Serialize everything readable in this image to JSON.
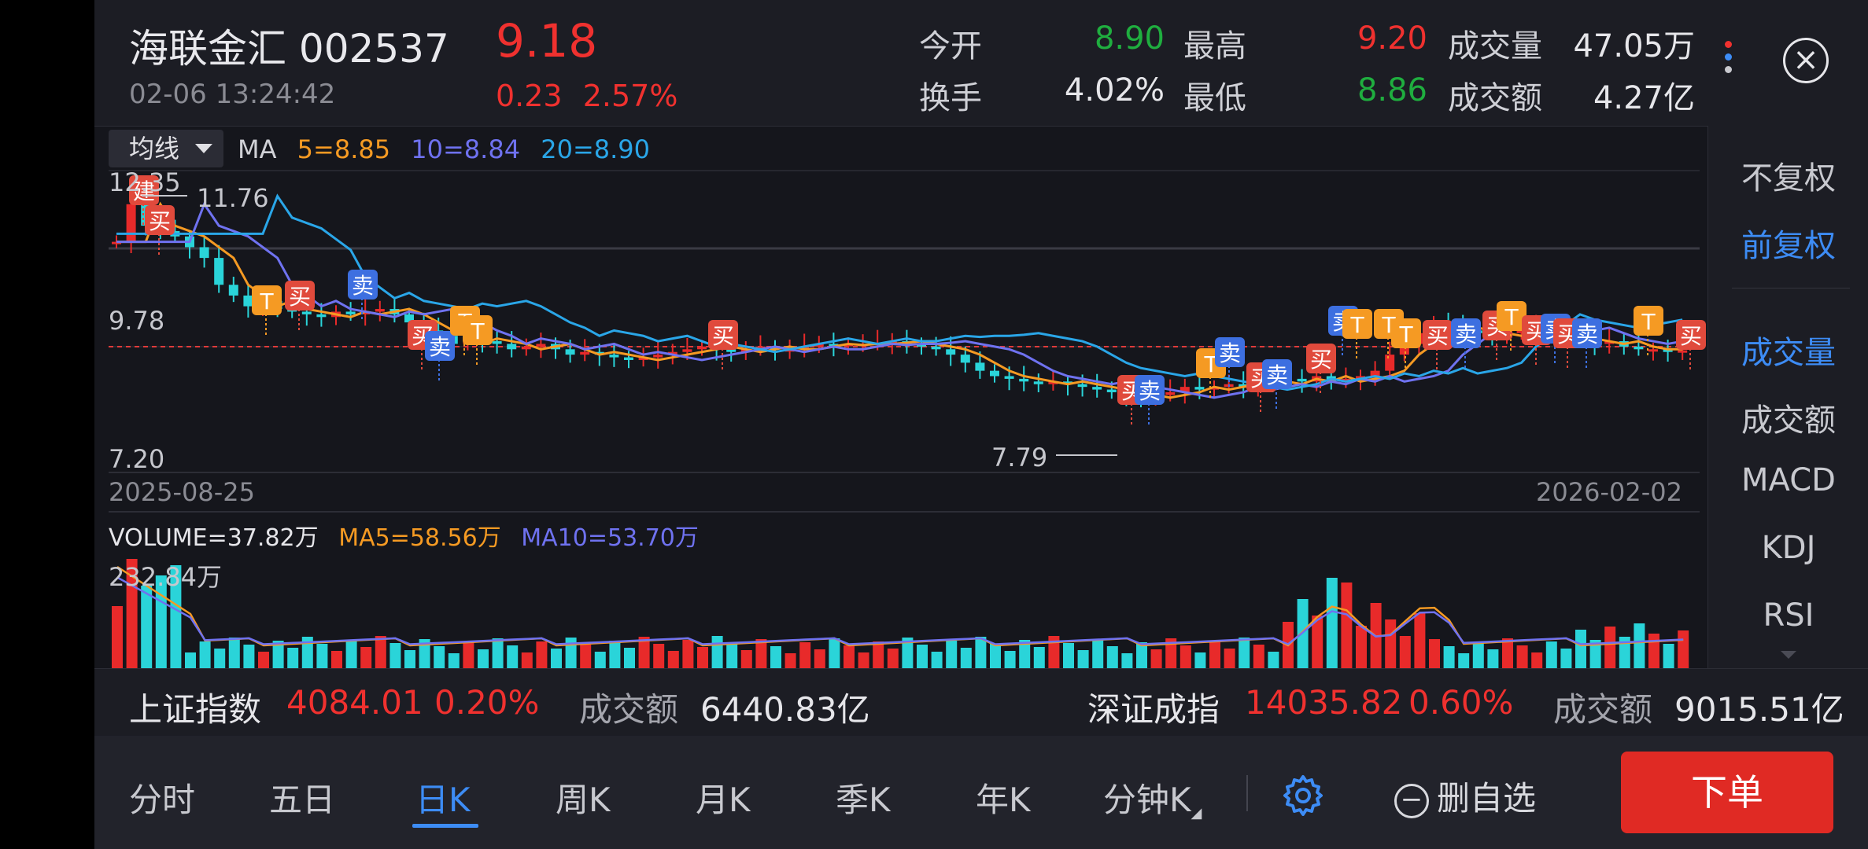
{
  "header": {
    "stock_name": "海联金汇",
    "stock_code": "002537",
    "price": "9.18",
    "timestamp": "02-06 13:24:42",
    "change_amount": "0.23",
    "change_pct": "2.57%",
    "quotes": [
      {
        "label": "今开",
        "value": "8.90",
        "color": "#1fae3f"
      },
      {
        "label": "最高",
        "value": "9.20",
        "color": "#f0312f"
      },
      {
        "label": "成交量",
        "value": "47.05万",
        "color": "#e6e6ea"
      },
      {
        "label": "换手",
        "value": "4.02%",
        "color": "#e6e6ea"
      },
      {
        "label": "最低",
        "value": "8.86",
        "color": "#1fae3f"
      },
      {
        "label": "成交额",
        "value": "4.27亿",
        "color": "#e6e6ea"
      }
    ],
    "close_icon": "close-circle-icon",
    "menu_dot_colors": [
      "#f0312f",
      "#3d8cf5",
      "#c8c9cf"
    ]
  },
  "main_chart": {
    "ma_select_label": "均线",
    "ma_label": "MA",
    "ma5": "5=8.85",
    "ma10": "10=8.84",
    "ma20": "20=8.90",
    "ma5_color": "#f59a23",
    "ma10_color": "#6f72f0",
    "ma20_color": "#2aa6e8",
    "y_top_label": "12.35",
    "y_mid_label": "9.78",
    "y_bottom_label": "7.20",
    "high_marker": "11.76",
    "low_marker": "7.79",
    "start_date": "2025-08-25",
    "end_date": "2026-02-02",
    "up_color": "#e82a2a",
    "down_color": "#2ad4d9",
    "marker_labels": {
      "build": "建",
      "buy": "买",
      "sell": "卖",
      "t": "T"
    }
  },
  "volume_chart": {
    "volume_label": "VOLUME=37.82万",
    "ma5_label": "MA5=58.56万",
    "ma10_label": "MA10=53.70万",
    "max_label": "232.84万"
  },
  "side_menu": {
    "items": [
      "不复权",
      "前复权",
      "成交量",
      "成交额",
      "MACD",
      "KDJ",
      "RSI"
    ],
    "active_adjust": "前复权",
    "active_indicator": "成交量"
  },
  "index_bar": {
    "sh_name": "上证指数",
    "sh_value": "4084.01",
    "sh_pct": "0.20%",
    "sh_turnover_label": "成交额",
    "sh_turnover": "6440.83亿",
    "sz_name": "深证成指",
    "sz_value": "14035.82",
    "sz_pct": "0.60%",
    "sz_turnover_label": "成交额",
    "sz_turnover": "9015.51亿"
  },
  "tabs": {
    "items": [
      "分时",
      "五日",
      "日K",
      "周K",
      "月K",
      "季K",
      "年K",
      "分钟K"
    ],
    "active": "日K",
    "settings_icon": "gear-icon",
    "remove_watch_label": "删自选",
    "order_label": "下单"
  }
}
